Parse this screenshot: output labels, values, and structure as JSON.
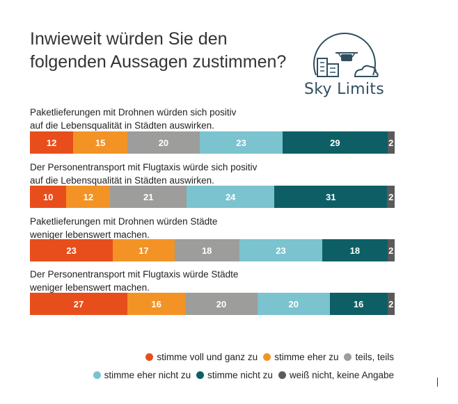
{
  "title": "Inwieweit würden Sie den folgenden Aussagen zustimmen?",
  "logo": {
    "text": "Sky Limits"
  },
  "colors": [
    "#e84e1b",
    "#f39325",
    "#9d9d9c",
    "#7ac3cf",
    "#0d5f65",
    "#5a5a5a"
  ],
  "chart_data": {
    "type": "bar",
    "orientation": "horizontal-stacked-100",
    "title": "Inwieweit würden Sie den folgenden Aussagen zustimmen?",
    "categories": [
      "Paketlieferungen mit Drohnen würden sich positiv auf die Lebensqualität in Städten auswirken.",
      "Der Personentransport mit Flugtaxis würde sich positiv auf die Lebensqualität in Städten auswirken.",
      "Paketlieferungen mit Drohnen würden Städte weniger lebenswert machen.",
      "Der Personentransport mit Flugtaxis würde Städte weniger lebenswert machen."
    ],
    "category_lines": [
      [
        "Paketlieferungen mit Drohnen würden sich positiv",
        "auf die Lebensqualität in Städten auswirken."
      ],
      [
        "Der Personentransport mit Flugtaxis würde sich positiv",
        "auf die Lebensqualität in Städten auswirken."
      ],
      [
        "Paketlieferungen mit Drohnen würden Städte",
        "weniger lebenswert machen."
      ],
      [
        "Der Personentransport mit Flugtaxis würde Städte",
        "weniger lebenswert machen."
      ]
    ],
    "series": [
      {
        "name": "stimme voll und ganz zu",
        "values": [
          12,
          10,
          23,
          27
        ]
      },
      {
        "name": "stimme eher zu",
        "values": [
          15,
          12,
          17,
          16
        ]
      },
      {
        "name": "teils, teils",
        "values": [
          20,
          21,
          18,
          20
        ]
      },
      {
        "name": "stimme eher nicht zu",
        "values": [
          23,
          24,
          23,
          20
        ]
      },
      {
        "name": "stimme nicht zu",
        "values": [
          29,
          31,
          18,
          16
        ]
      },
      {
        "name": "weiß nicht, keine Angabe",
        "values": [
          2,
          2,
          2,
          2
        ]
      }
    ],
    "legend_position": "bottom-right"
  }
}
